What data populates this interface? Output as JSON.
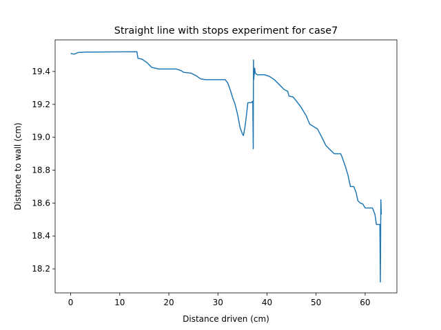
{
  "chart_data": {
    "type": "line",
    "title": "Straight line with stops experiment for case7",
    "x_label": "Distance driven (cm)",
    "y_label": "Distance to wall (cm)",
    "x": [
      0,
      0.7,
      1.5,
      3,
      13.5,
      13.7,
      14.5,
      15.5,
      16.5,
      18,
      21.5,
      22.5,
      23,
      24.5,
      25.5,
      26.5,
      27.5,
      31.5,
      32,
      32.5,
      33,
      33.5,
      34,
      34.5,
      35,
      35.2,
      35.5,
      35.8,
      36.1,
      36.8,
      37.1,
      37.2,
      37.25,
      37.3,
      37.5,
      37.6,
      38,
      39.5,
      40.5,
      41.5,
      42.5,
      43.5,
      44.2,
      44.5,
      45.3,
      46,
      47,
      48,
      48.7,
      49.5,
      50.3,
      51,
      52,
      53,
      53.7,
      55,
      55.3,
      56,
      56.5,
      57,
      57.7,
      58.2,
      58.5,
      59,
      59.5,
      60,
      61.5,
      62,
      62.3,
      63,
      63.1,
      63.2,
      63.3
    ],
    "series": [
      {
        "color": "#1f77b4",
        "values": [
          19.51,
          19.505,
          19.515,
          19.518,
          19.52,
          19.48,
          19.475,
          19.455,
          19.425,
          19.415,
          19.415,
          19.405,
          19.395,
          19.39,
          19.375,
          19.355,
          19.35,
          19.35,
          19.33,
          19.29,
          19.24,
          19.2,
          19.14,
          19.06,
          19.02,
          19.01,
          19.06,
          19.13,
          19.21,
          19.21,
          19.22,
          18.93,
          19.47,
          19.35,
          19.42,
          19.39,
          19.38,
          19.38,
          19.37,
          19.35,
          19.32,
          19.29,
          19.28,
          19.25,
          19.245,
          19.22,
          19.18,
          19.13,
          19.08,
          19.065,
          19.05,
          19.01,
          18.95,
          18.92,
          18.9,
          18.9,
          18.88,
          18.82,
          18.77,
          18.7,
          18.7,
          18.66,
          18.615,
          18.6,
          18.595,
          18.57,
          18.57,
          18.53,
          18.47,
          18.47,
          18.12,
          18.62,
          18.53
        ]
      }
    ],
    "xlim": [
      -3.17,
      66.47
    ],
    "ylim": [
      18.054,
      19.592
    ],
    "xticks": [
      0,
      10,
      20,
      30,
      40,
      50,
      60
    ],
    "yticks": [
      18.2,
      18.4,
      18.6,
      18.8,
      {
        "value": 19.0,
        "label": "19.0"
      },
      19.2,
      19.4
    ]
  }
}
